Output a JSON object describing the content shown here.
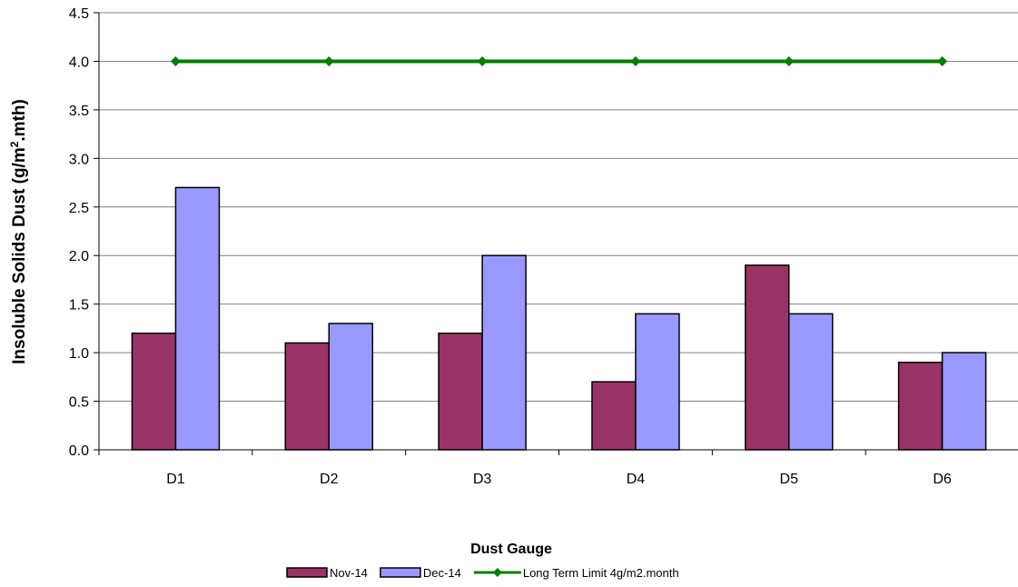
{
  "chart_data": {
    "type": "bar",
    "title": "",
    "xlabel": "Dust Gauge",
    "ylabel_main": "Insoluble Solids Dust (g/m",
    "ylabel_sup": "2",
    "ylabel_tail": ".mth)",
    "categories": [
      "D1",
      "D2",
      "D3",
      "D4",
      "D5",
      "D6"
    ],
    "y_tick_labels": [
      "0.0",
      "0.5",
      "1.0",
      "1.5",
      "2.0",
      "2.5",
      "3.0",
      "3.5",
      "4.0",
      "4.5"
    ],
    "ylim": [
      0,
      4.5
    ],
    "grid": true,
    "legend_position": "bottom",
    "series": [
      {
        "name": "Nov-14",
        "kind": "bar",
        "color": "#993366",
        "values": [
          1.2,
          1.1,
          1.2,
          0.7,
          1.9,
          0.9
        ]
      },
      {
        "name": "Dec-14",
        "kind": "bar",
        "color": "#9999ff",
        "values": [
          2.7,
          1.3,
          2.0,
          1.4,
          1.4,
          1.0
        ]
      },
      {
        "name": "Long Term Limit 4g/m2.month",
        "kind": "line",
        "color": "#008000",
        "values": [
          4.0,
          4.0,
          4.0,
          4.0,
          4.0,
          4.0
        ]
      }
    ]
  }
}
